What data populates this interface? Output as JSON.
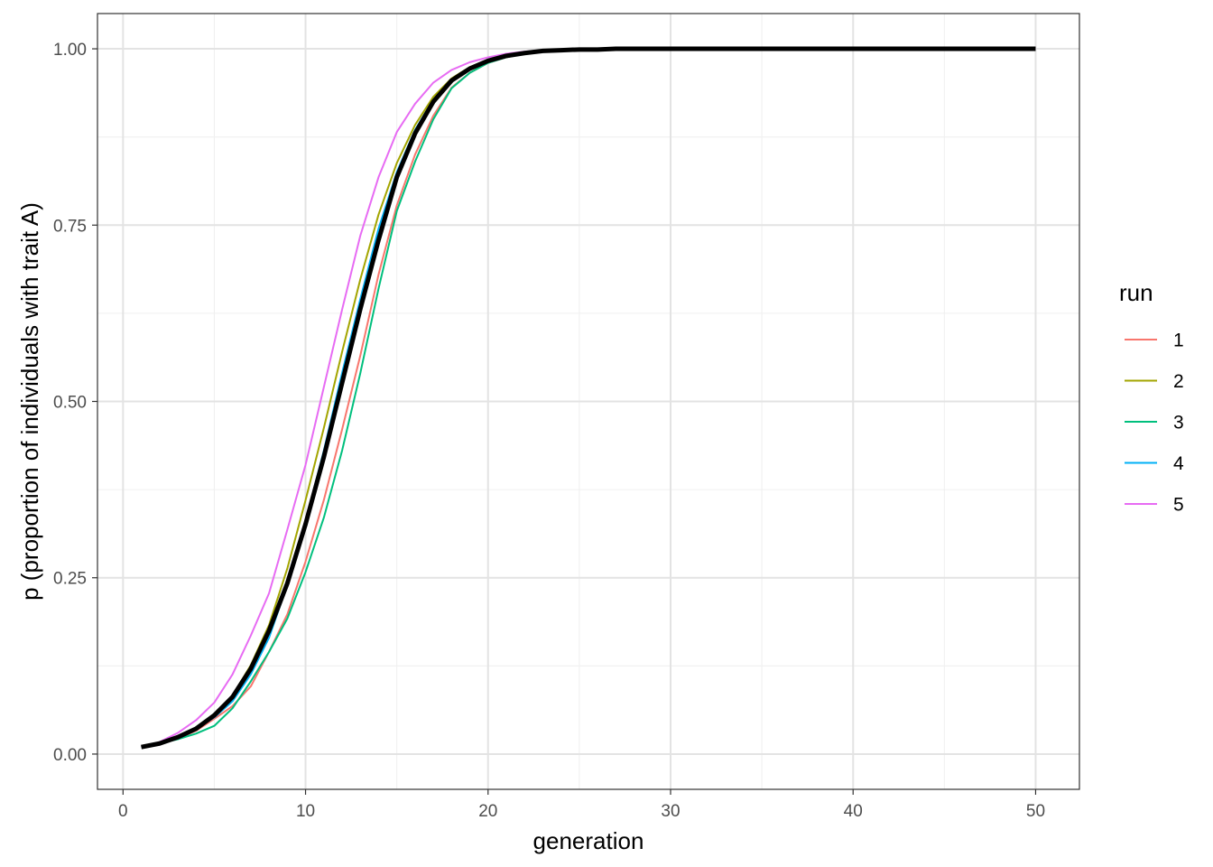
{
  "chart_data": {
    "type": "line",
    "title": "",
    "xlabel": "generation",
    "ylabel": "p (proportion of individuals with trait A)",
    "xlim": [
      -1.4,
      52.4
    ],
    "ylim": [
      -0.05,
      1.05
    ],
    "x_ticks": [
      0,
      10,
      20,
      30,
      40,
      50
    ],
    "x_tick_labels": [
      "0",
      "10",
      "20",
      "30",
      "40",
      "50"
    ],
    "y_ticks": [
      0,
      0.25,
      0.5,
      0.75,
      1
    ],
    "y_tick_labels": [
      "0.00",
      "0.25",
      "0.50",
      "0.75",
      "1.00"
    ],
    "grid": true,
    "legend": {
      "title": "run",
      "position": "right"
    },
    "x": [
      1,
      2,
      3,
      4,
      5,
      6,
      7,
      8,
      9,
      10,
      11,
      12,
      13,
      14,
      15,
      16,
      17,
      18,
      19,
      20,
      21,
      22,
      23,
      24,
      25,
      26,
      27,
      28,
      29,
      30,
      31,
      32,
      33,
      34,
      35,
      36,
      37,
      38,
      39,
      40,
      41,
      42,
      43,
      44,
      45,
      46,
      47,
      48,
      49,
      50
    ],
    "series": [
      {
        "name": "1",
        "color": "#F8766D",
        "values": [
          0.01,
          0.015,
          0.022,
          0.033,
          0.05,
          0.068,
          0.096,
          0.145,
          0.198,
          0.273,
          0.36,
          0.46,
          0.565,
          0.68,
          0.778,
          0.85,
          0.905,
          0.945,
          0.966,
          0.98,
          0.988,
          0.993,
          0.996,
          0.998,
          0.999,
          0.999,
          1,
          1,
          1,
          1,
          1,
          1,
          1,
          1,
          1,
          1,
          1,
          1,
          1,
          1,
          1,
          1,
          1,
          1,
          1,
          1,
          1,
          1,
          1,
          1
        ]
      },
      {
        "name": "2",
        "color": "#A3A500",
        "values": [
          0.01,
          0.016,
          0.025,
          0.037,
          0.056,
          0.083,
          0.126,
          0.183,
          0.263,
          0.36,
          0.462,
          0.57,
          0.673,
          0.765,
          0.838,
          0.892,
          0.932,
          0.958,
          0.974,
          0.984,
          0.99,
          0.994,
          0.997,
          0.998,
          0.999,
          0.999,
          1,
          1,
          1,
          1,
          1,
          1,
          1,
          1,
          1,
          1,
          1,
          1,
          1,
          1,
          1,
          1,
          1,
          1,
          1,
          1,
          1,
          1,
          1,
          1
        ]
      },
      {
        "name": "3",
        "color": "#00BF7D",
        "values": [
          0.01,
          0.015,
          0.021,
          0.029,
          0.04,
          0.065,
          0.103,
          0.145,
          0.192,
          0.258,
          0.335,
          0.43,
          0.54,
          0.66,
          0.77,
          0.84,
          0.9,
          0.944,
          0.966,
          0.98,
          0.988,
          0.993,
          0.996,
          0.998,
          0.999,
          0.999,
          1,
          1,
          1,
          1,
          1,
          1,
          1,
          1,
          1,
          1,
          1,
          1,
          1,
          1,
          1,
          1,
          1,
          1,
          1,
          1,
          1,
          1,
          1,
          1
        ]
      },
      {
        "name": "4",
        "color": "#00B0F6",
        "values": [
          0.01,
          0.015,
          0.023,
          0.035,
          0.052,
          0.075,
          0.113,
          0.165,
          0.24,
          0.33,
          0.43,
          0.54,
          0.645,
          0.745,
          0.825,
          0.885,
          0.928,
          0.955,
          0.972,
          0.982,
          0.989,
          0.993,
          0.996,
          0.998,
          0.999,
          0.999,
          1,
          1,
          1,
          1,
          1,
          1,
          1,
          1,
          1,
          1,
          1,
          1,
          1,
          1,
          1,
          1,
          1,
          1,
          1,
          1,
          1,
          1,
          1,
          1
        ]
      },
      {
        "name": "5",
        "color": "#E76BF3",
        "values": [
          0.01,
          0.017,
          0.03,
          0.048,
          0.073,
          0.113,
          0.168,
          0.228,
          0.318,
          0.41,
          0.52,
          0.63,
          0.735,
          0.818,
          0.882,
          0.922,
          0.952,
          0.97,
          0.981,
          0.988,
          0.993,
          0.996,
          0.998,
          0.999,
          0.999,
          1,
          1,
          1,
          1,
          1,
          1,
          1,
          1,
          1,
          1,
          1,
          1,
          1,
          1,
          1,
          1,
          1,
          1,
          1,
          1,
          1,
          1,
          1,
          1,
          1
        ]
      }
    ],
    "mean": {
      "color": "#000000",
      "values": [
        0.01,
        0.015,
        0.024,
        0.036,
        0.055,
        0.081,
        0.121,
        0.175,
        0.242,
        0.326,
        0.421,
        0.526,
        0.631,
        0.729,
        0.818,
        0.88,
        0.925,
        0.955,
        0.972,
        0.983,
        0.99,
        0.994,
        0.997,
        0.998,
        0.999,
        0.999,
        1,
        1,
        1,
        1,
        1,
        1,
        1,
        1,
        1,
        1,
        1,
        1,
        1,
        1,
        1,
        1,
        1,
        1,
        1,
        1,
        1,
        1,
        1,
        1
      ]
    }
  }
}
